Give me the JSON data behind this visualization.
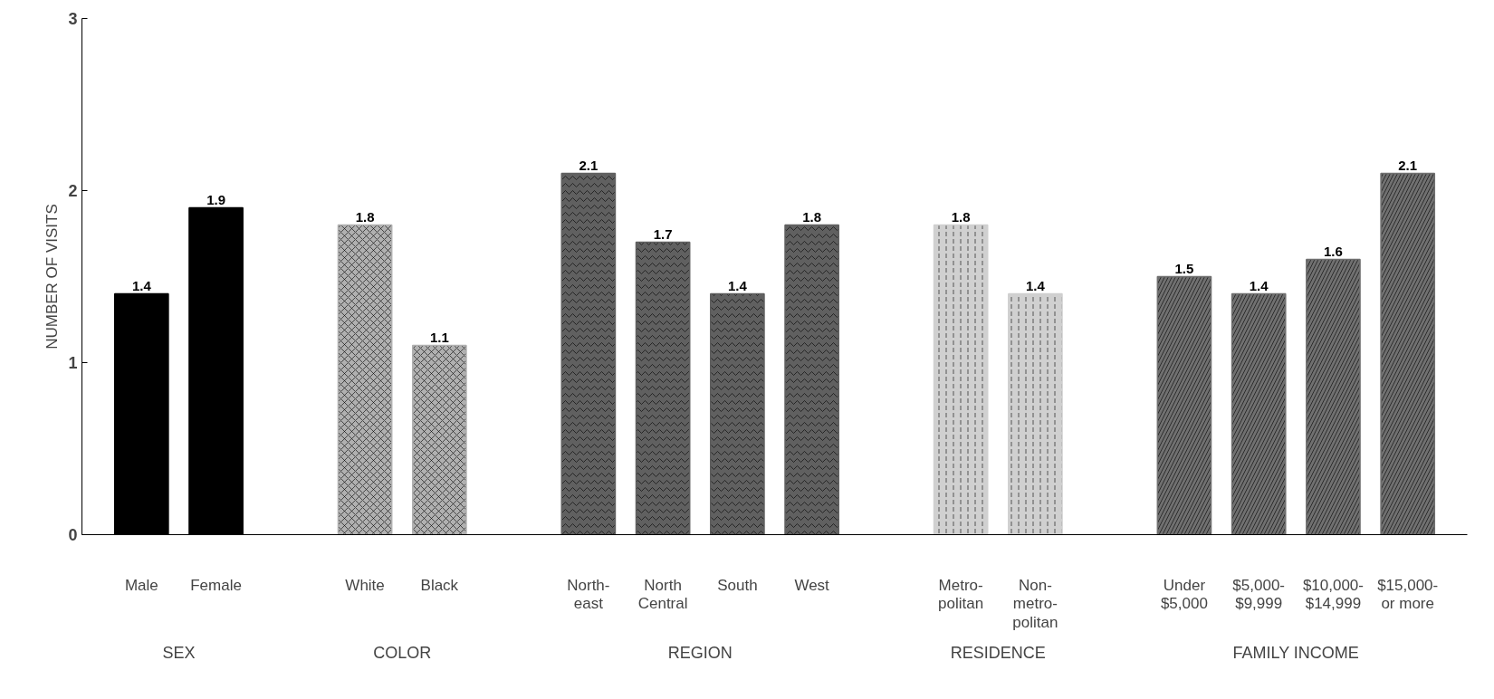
{
  "chart_data": {
    "type": "bar",
    "ylabel": "NUMBER OF VISITS",
    "categories": [
      "Male",
      "Female",
      "White",
      "Black",
      "North-\neast",
      "North\nCentral",
      "South",
      "West",
      "Metro-\npolitan",
      "Non-\nmetro-\npolitan",
      "Under\n$5,000",
      "$5,000-\n$9,999",
      "$10,000-\n$14,999",
      "$15,000-\nor more"
    ],
    "values": [
      1.4,
      1.9,
      1.8,
      1.1,
      2.1,
      1.7,
      1.4,
      1.8,
      1.8,
      1.4,
      1.5,
      1.4,
      1.6,
      2.1
    ],
    "colors": [
      "#000000",
      "#000000",
      "#b0b0b0",
      "#b0b0b0",
      "#606060",
      "#606060",
      "#606060",
      "#606060",
      "#d0d0d0",
      "#d0d0d0",
      "#707070",
      "#707070",
      "#707070",
      "#707070"
    ],
    "annotations": [
      "SEX",
      "COLOR",
      "REGION",
      "RESIDENCE",
      "FAMILY INCOME"
    ],
    "ylim": [
      0,
      3
    ],
    "yticks": [
      0,
      1,
      2,
      3
    ],
    "grid": false,
    "data_labels": true
  }
}
